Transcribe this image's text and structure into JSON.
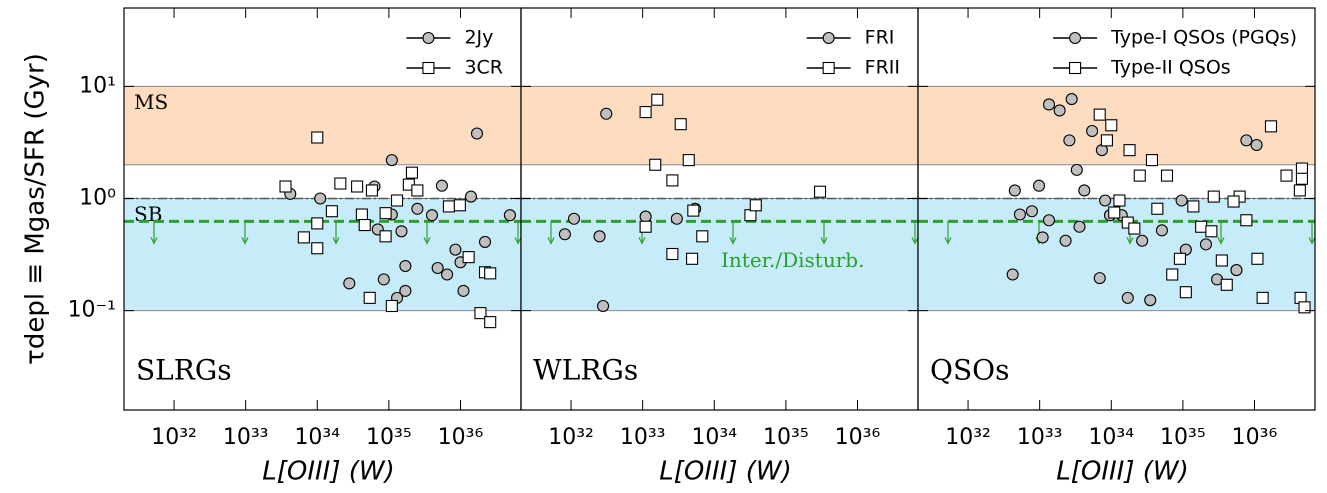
{
  "chart_data": [
    {
      "type": "scatter",
      "panel_label": "SLRGs",
      "x_label": "L[OIII] (W)",
      "y_label": "τdepl ≡ Mgas/SFR (Gyr)",
      "log_x": true,
      "log_y": true,
      "xlim": [
        2e+31,
        7e+36
      ],
      "ylim": [
        0.013,
        50
      ],
      "xticks": [
        {
          "value": 1e+32,
          "label": "10³²"
        },
        {
          "value": 1e+33,
          "label": "10³³"
        },
        {
          "value": 1e+34,
          "label": "10³⁴"
        },
        {
          "value": 1e+35,
          "label": "10³⁵"
        },
        {
          "value": 1e+36,
          "label": "10³⁶"
        }
      ],
      "yticks": [
        {
          "value": 10,
          "label": "10¹"
        },
        {
          "value": 1,
          "label": "10⁰"
        },
        {
          "value": 0.1,
          "label": "10⁻¹"
        }
      ],
      "legend": "upper right",
      "bands": [
        {
          "range": [
            2,
            10
          ],
          "color": "#fddcc0",
          "label": "MS"
        },
        {
          "range": [
            0.1,
            1
          ],
          "color": "#c6ebf9",
          "label": "SB"
        }
      ],
      "reference_line": 1,
      "threshold": {
        "value": 0.625,
        "color": "#2ca02c"
      },
      "series": [
        {
          "name": "2Jy",
          "marker": "circle",
          "color": "#bfbfbf",
          "x": [
            4.2e+33,
            1.1e+34,
            2.8e+34,
            6.3e+34,
            7e+34,
            8.5e+34,
            1.1e+35,
            1.1e+35,
            1.5e+35,
            1.7e+35,
            1.3e+35,
            1.7e+35,
            2.5e+35,
            4e+35,
            5.5e+35,
            6.5e+35,
            8.5e+35,
            1e+36,
            1.1e+36,
            1.4e+36,
            1.7e+36,
            2.2e+36,
            4.9e+36,
            4.8e+35
          ],
          "values": [
            1.1,
            1.0,
            0.175,
            1.28,
            0.53,
            0.19,
            2.2,
            0.72,
            0.51,
            0.25,
            0.13,
            0.15,
            0.81,
            0.71,
            1.3,
            0.21,
            0.35,
            0.27,
            0.15,
            1.04,
            3.8,
            0.41,
            0.71,
            0.24
          ]
        },
        {
          "name": "3CR",
          "marker": "square",
          "color": "#ffffff",
          "x": [
            1e+34,
            3.6e+33,
            6.5e+33,
            1e+34,
            1e+34,
            1.6e+34,
            2.1e+34,
            3.6e+34,
            4.2e+34,
            4.6e+34,
            5.8e+34,
            9e+34,
            9e+34,
            5.4e+34,
            1.1e+35,
            1.3e+35,
            1.9e+35,
            2.1e+35,
            2.5e+35,
            6.9e+35,
            9.8e+35,
            1.3e+36,
            1.9e+36,
            2.2e+36,
            2.6e+36,
            2.6e+36
          ],
          "values": [
            3.5,
            1.28,
            0.45,
            0.6,
            0.36,
            0.77,
            1.36,
            1.28,
            0.72,
            0.58,
            1.18,
            0.74,
            0.46,
            0.13,
            0.11,
            0.96,
            1.33,
            1.7,
            1.18,
            0.85,
            0.87,
            0.3,
            0.095,
            0.22,
            0.079,
            0.215
          ]
        }
      ]
    },
    {
      "type": "scatter",
      "panel_label": "WLRGs",
      "x_label": "L[OIII] (W)",
      "log_x": true,
      "log_y": true,
      "xlim": [
        2e+31,
        7e+36
      ],
      "ylim": [
        0.013,
        50
      ],
      "xticks": [
        {
          "value": 1e+32,
          "label": "10³²"
        },
        {
          "value": 1e+33,
          "label": "10³³"
        },
        {
          "value": 1e+34,
          "label": "10³⁴"
        },
        {
          "value": 1e+35,
          "label": "10³⁵"
        },
        {
          "value": 1e+36,
          "label": "10³⁶"
        }
      ],
      "yticks": [
        10,
        1,
        0.1
      ],
      "legend": "upper right",
      "bands": [
        {
          "range": [
            2,
            10
          ],
          "color": "#fddcc0"
        },
        {
          "range": [
            0.1,
            1
          ],
          "color": "#c6ebf9"
        }
      ],
      "reference_line": 1,
      "threshold": {
        "value": 0.625,
        "color": "#2ca02c",
        "label": "Inter./Disturb."
      },
      "series": [
        {
          "name": "FRI",
          "marker": "circle",
          "color": "#bfbfbf",
          "x": [
            3.1e+32,
            1.1e+32,
            8.2e+31,
            2.5e+32,
            2.8e+32,
            1.1e+33,
            3e+33,
            5.4e+33
          ],
          "values": [
            5.7,
            0.66,
            0.48,
            0.46,
            0.11,
            0.69,
            0.66,
            0.81
          ]
        },
        {
          "name": "FRII",
          "marker": "square",
          "color": "#ffffff",
          "x": [
            1.1e+33,
            1.6e+33,
            1.5e+33,
            2.6e+33,
            3.4e+33,
            4.4e+33,
            2.6e+33,
            4.9e+33,
            5.1e+33,
            6.8e+33,
            3.2e+34,
            3.8e+34,
            3e+35,
            1.1e+33
          ],
          "values": [
            5.9,
            7.6,
            2.0,
            1.45,
            4.6,
            2.2,
            0.32,
            0.29,
            0.78,
            0.46,
            0.71,
            0.87,
            1.15,
            0.56
          ]
        }
      ]
    },
    {
      "type": "scatter",
      "panel_label": "QSOs",
      "x_label": "L[OIII] (W)",
      "log_x": true,
      "log_y": true,
      "xlim": [
        2e+31,
        7e+36
      ],
      "ylim": [
        0.013,
        50
      ],
      "xticks": [
        {
          "value": 1e+32,
          "label": "10³²"
        },
        {
          "value": 1e+33,
          "label": "10³³"
        },
        {
          "value": 1e+34,
          "label": "10³⁴"
        },
        {
          "value": 1e+35,
          "label": "10³⁵"
        },
        {
          "value": 1e+36,
          "label": "10³⁶"
        }
      ],
      "yticks": [
        10,
        1,
        0.1
      ],
      "legend": "upper right",
      "bands": [
        {
          "range": [
            2,
            10
          ],
          "color": "#fddcc0"
        },
        {
          "range": [
            0.1,
            1
          ],
          "color": "#c6ebf9"
        }
      ],
      "reference_line": 1,
      "threshold": {
        "value": 0.625,
        "color": "#2ca02c"
      },
      "series": [
        {
          "name": "Type-I QSOs (PGQs)",
          "marker": "circle",
          "color": "#bfbfbf",
          "x": [
            4.2e+32,
            4.5e+32,
            5.3e+32,
            7.8e+32,
            9.8e+32,
            1.35e+33,
            1.9e+33,
            2.8e+33,
            2.3e+33,
            2.6e+33,
            3.3e+33,
            4.2e+33,
            5.4e+33,
            7.4e+33,
            8.2e+33,
            9.6e+33,
            1.4e+34,
            2.7e+34,
            5.1e+34,
            9.6e+34,
            1.1e+35,
            2.1e+35,
            3e+35,
            5.6e+35,
            7.7e+35,
            1.07e+36,
            1.35e+33,
            3.6e+33,
            6.9e+33,
            1.7e+34,
            3.5e+34,
            1.1e+33
          ],
          "values": [
            0.21,
            1.18,
            0.72,
            0.77,
            1.3,
            6.9,
            6.1,
            7.7,
            0.42,
            3.3,
            1.8,
            1.18,
            4.0,
            2.7,
            0.96,
            0.71,
            0.71,
            0.42,
            0.52,
            0.96,
            0.35,
            0.39,
            0.19,
            0.23,
            3.3,
            3.0,
            0.64,
            0.56,
            0.195,
            0.13,
            0.124,
            0.45
          ]
        },
        {
          "name": "Type-II QSOs",
          "marker": "square",
          "color": "#ffffff",
          "x": [
            6.9e+33,
            8.7e+33,
            1e+34,
            1.1e+34,
            1.3e+34,
            1.7e+34,
            1.8e+34,
            2.1e+34,
            2.5e+34,
            3.7e+34,
            4.4e+34,
            6e+34,
            7.1e+34,
            9.1e+34,
            1.1e+35,
            1.4e+35,
            1.8e+35,
            2.5e+35,
            3.5e+35,
            4.1e+35,
            6.2e+35,
            7.7e+35,
            1.1e+36,
            1.3e+36,
            1.7e+36,
            2.8e+36,
            4.3e+36,
            4.6e+36,
            4.6e+36,
            4.4e+36,
            5e+36,
            5.1e+35,
            2.7e+35
          ],
          "values": [
            5.6,
            3.3,
            4.5,
            0.75,
            0.96,
            0.61,
            2.7,
            0.54,
            1.6,
            2.2,
            0.81,
            1.6,
            0.21,
            0.29,
            0.146,
            0.85,
            0.56,
            0.51,
            0.28,
            0.17,
            1.04,
            0.64,
            0.29,
            0.13,
            4.4,
            1.6,
            1.18,
            1.85,
            1.5,
            0.13,
            0.107,
            0.94,
            1.04
          ]
        }
      ]
    }
  ]
}
